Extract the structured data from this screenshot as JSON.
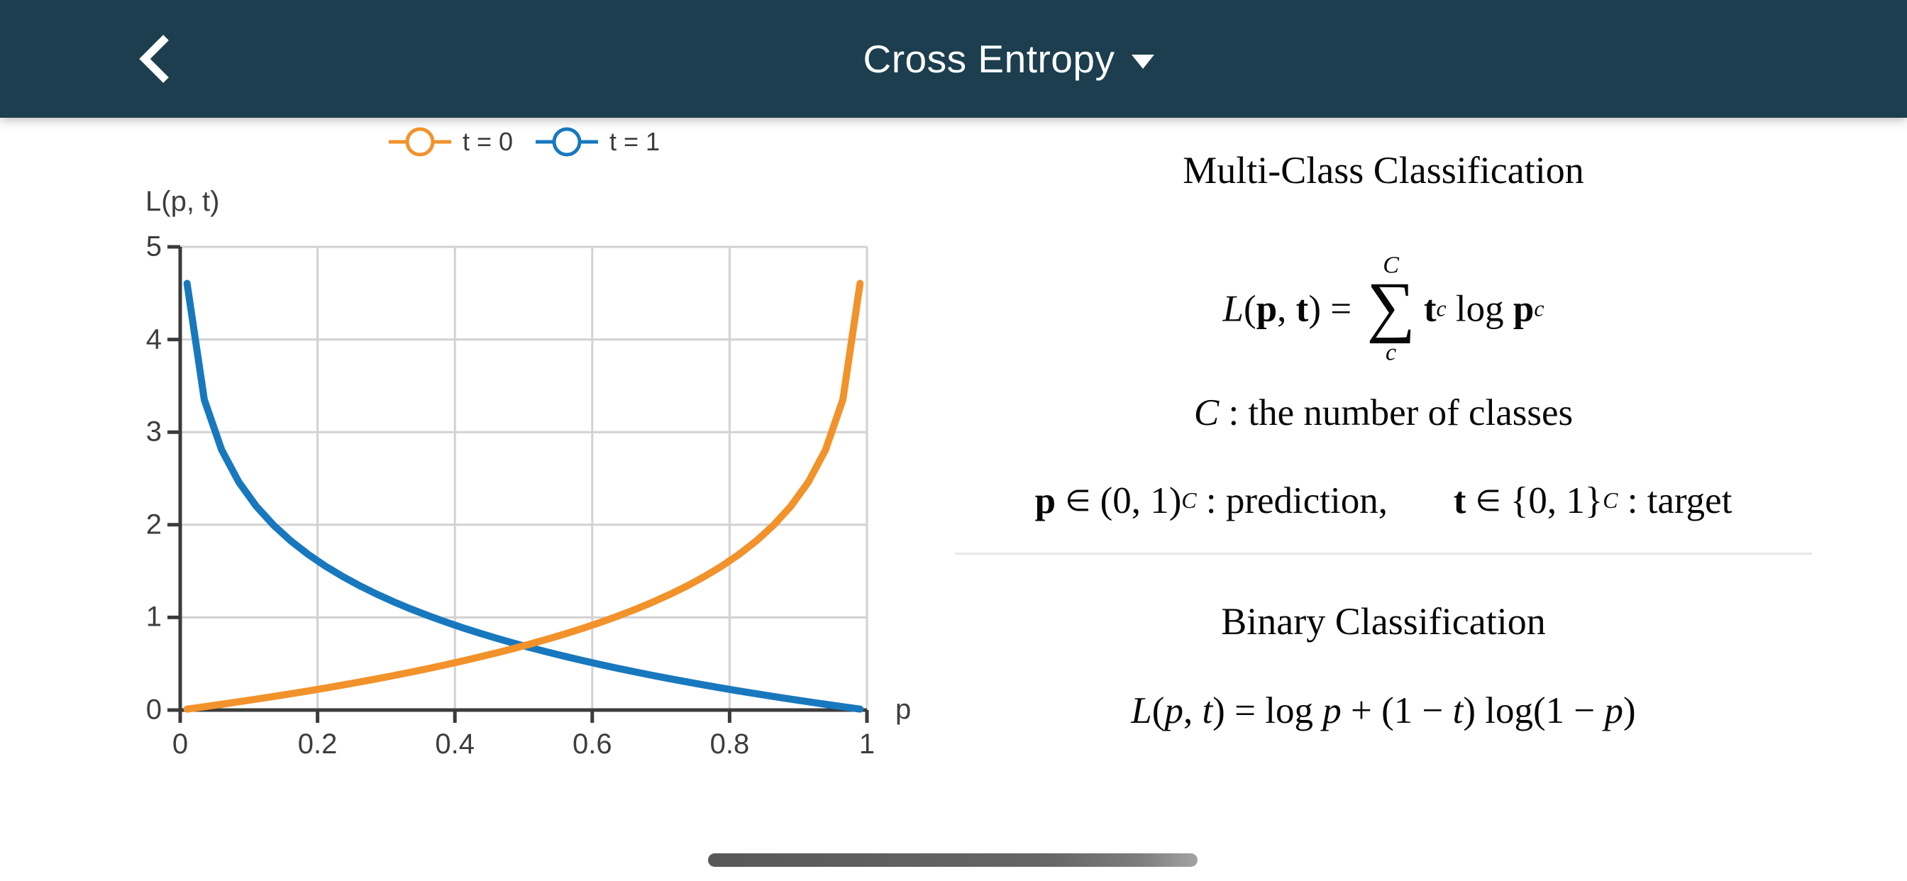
{
  "header": {
    "title": "Cross Entropy",
    "back_icon": "chevron-left",
    "dropdown_icon": "caret-down",
    "bg_color": "#1C3E4E"
  },
  "chart_data": {
    "type": "line",
    "xlabel": "p",
    "ylabel": "L(p, t)",
    "xlim": [
      0,
      1
    ],
    "ylim": [
      0,
      5
    ],
    "xticks": [
      0,
      0.2,
      0.4,
      0.6,
      0.8,
      1
    ],
    "xtick_labels": [
      "0",
      "0.2",
      "0.4",
      "0.6",
      "0.8",
      "1"
    ],
    "yticks": [
      0,
      1,
      2,
      3,
      4,
      5
    ],
    "ytick_labels": [
      "0",
      "1",
      "2",
      "3",
      "4",
      "5"
    ],
    "grid": true,
    "legend_position": "top-center",
    "grid_color": "#d2d2d2",
    "axis_color": "#3b3b3b",
    "x": [
      0.01,
      0.0351,
      0.0603,
      0.0854,
      0.1105,
      0.1356,
      0.1608,
      0.1859,
      0.2111,
      0.2362,
      0.2613,
      0.2864,
      0.3116,
      0.3367,
      0.3618,
      0.3869,
      0.4121,
      0.4372,
      0.4623,
      0.4874,
      0.5126,
      0.5377,
      0.5628,
      0.5879,
      0.6131,
      0.6382,
      0.6633,
      0.6884,
      0.7136,
      0.7387,
      0.7638,
      0.7889,
      0.8141,
      0.8392,
      0.8643,
      0.8895,
      0.9146,
      0.9397,
      0.9649,
      0.99
    ],
    "series": [
      {
        "name": "t = 0",
        "color": "#F2922A",
        "formula": "L = -log(1-p)",
        "y": [
          0.0101,
          0.0357,
          0.0622,
          0.0893,
          0.1171,
          0.1458,
          0.1753,
          0.2057,
          0.2371,
          0.2695,
          0.3029,
          0.3375,
          0.3734,
          0.4106,
          0.4491,
          0.4893,
          0.5312,
          0.5749,
          0.6205,
          0.6683,
          0.7187,
          0.7716,
          0.8274,
          0.8865,
          0.9496,
          1.0167,
          1.0886,
          1.1661,
          1.2505,
          1.3422,
          1.4431,
          1.5554,
          1.6826,
          1.8276,
          1.9981,
          2.2026,
          2.4604,
          2.8088,
          3.3494,
          4.6052
        ]
      },
      {
        "name": "t = 1",
        "color": "#1878BE",
        "formula": "L = -log(p)",
        "y": [
          4.6052,
          3.3494,
          2.8088,
          2.4604,
          2.2026,
          1.9981,
          1.8276,
          1.6826,
          1.5554,
          1.4431,
          1.3422,
          1.2505,
          1.1661,
          1.0886,
          1.0167,
          0.9496,
          0.8865,
          0.8274,
          0.7716,
          0.7187,
          0.6683,
          0.6205,
          0.5749,
          0.5312,
          0.4893,
          0.4491,
          0.4106,
          0.3734,
          0.3375,
          0.3029,
          0.2695,
          0.2371,
          0.2057,
          0.1753,
          0.1458,
          0.1171,
          0.0893,
          0.0622,
          0.0357,
          0.0101
        ]
      }
    ]
  },
  "panel": {
    "multiclass_title": "Multi-Class Classification",
    "multiclass_formula": "L(p, t) = ∑_c^C t_c log p_c",
    "multiclass_formula_tokens": [
      {
        "t": "L",
        "s": "it"
      },
      {
        "t": "(",
        "s": "up"
      },
      {
        "t": "p",
        "s": "bd"
      },
      {
        "t": ", ",
        "s": "up"
      },
      {
        "t": "t",
        "s": "bd"
      },
      {
        "t": ")",
        "s": "up"
      },
      {
        "t": " = ",
        "s": "up"
      },
      {
        "sum": true,
        "top": "C",
        "bot": "c"
      },
      {
        "t": "t",
        "s": "bd"
      },
      {
        "t": "c",
        "s": "sub"
      },
      {
        "t": " log ",
        "s": "up"
      },
      {
        "t": "p",
        "s": "bd"
      },
      {
        "t": "c",
        "s": "sub"
      }
    ],
    "classes_line": "C : the number of classes",
    "classes_tokens": [
      {
        "t": "C",
        "s": "it"
      },
      {
        "t": " : the number of classes",
        "s": "up"
      }
    ],
    "domain_line": "p ∈ (0, 1)^C : prediction,  t ∈ {0, 1}^C : target",
    "domain_tokens": [
      {
        "t": "p",
        "s": "bd"
      },
      {
        "t": " ",
        "s": "up"
      },
      {
        "t": "∈",
        "s": "in"
      },
      {
        "t": " (0, 1)",
        "s": "up"
      },
      {
        "t": "C",
        "s": "sup"
      },
      {
        "t": " : prediction,",
        "s": "up"
      },
      {
        "t": "   ",
        "s": "up"
      },
      {
        "t": "t",
        "s": "bd"
      },
      {
        "t": " ",
        "s": "up"
      },
      {
        "t": "∈",
        "s": "in"
      },
      {
        "t": " {0, 1}",
        "s": "up"
      },
      {
        "t": "C",
        "s": "sup"
      },
      {
        "t": " : target",
        "s": "up"
      }
    ],
    "binary_title": "Binary Classification",
    "binary_formula": "L(p, t) = log p + (1 − t) log(1 − p)",
    "binary_formula_tokens": [
      {
        "t": "L",
        "s": "it"
      },
      {
        "t": "(",
        "s": "up"
      },
      {
        "t": "p",
        "s": "it"
      },
      {
        "t": ", ",
        "s": "up"
      },
      {
        "t": "t",
        "s": "it"
      },
      {
        "t": ")",
        "s": "up"
      },
      {
        "t": " = log ",
        "s": "up"
      },
      {
        "t": "p",
        "s": "it"
      },
      {
        "t": " + (1 − ",
        "s": "up"
      },
      {
        "t": "t",
        "s": "it"
      },
      {
        "t": ") log(1 − ",
        "s": "up"
      },
      {
        "t": "p",
        "s": "it"
      },
      {
        "t": ")",
        "s": "up"
      }
    ]
  },
  "home_indicator": {
    "present": true,
    "color": "#6b6b6b"
  }
}
